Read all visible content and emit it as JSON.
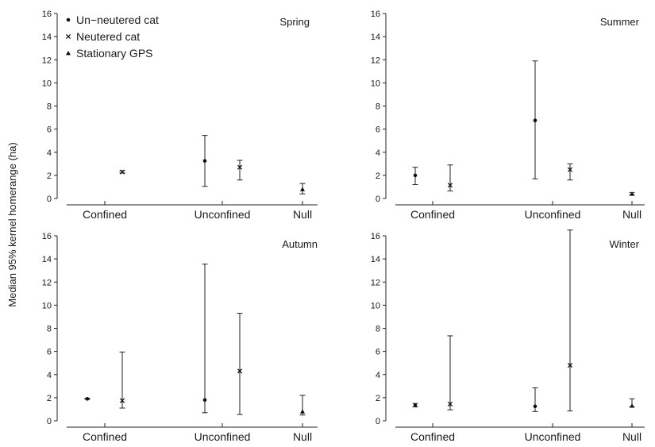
{
  "chart_data": {
    "type": "scatter",
    "ylabel": "Median 95% kernel homerange (ha)",
    "categories": [
      "Confined",
      "Unconfined",
      "Null"
    ],
    "ylim": [
      0,
      16
    ],
    "yticks": [
      "0",
      "2",
      "4",
      "6",
      "8",
      "10",
      "12",
      "14",
      "16"
    ],
    "grid": false,
    "legend_position": "top-left",
    "legend": [
      {
        "name": "Un−neutered cat",
        "marker": "dot"
      },
      {
        "name": "Neutered cat",
        "marker": "x"
      },
      {
        "name": "Stationary GPS",
        "marker": "triangle"
      }
    ],
    "panels": [
      {
        "title": "Spring",
        "points": [
          {
            "category": "Confined",
            "group": "Neutered cat",
            "median": 2.3,
            "low": 2.2,
            "high": 2.4
          },
          {
            "category": "Unconfined",
            "group": "Un−neutered cat",
            "median": 3.25,
            "low": 1.05,
            "high": 5.45
          },
          {
            "category": "Unconfined",
            "group": "Neutered cat",
            "median": 2.7,
            "low": 1.6,
            "high": 3.3
          },
          {
            "category": "Null",
            "group": "Stationary GPS",
            "median": 0.8,
            "low": 0.4,
            "high": 1.3
          }
        ]
      },
      {
        "title": "Summer",
        "points": [
          {
            "category": "Confined",
            "group": "Un−neutered cat",
            "median": 2.0,
            "low": 1.2,
            "high": 2.7
          },
          {
            "category": "Confined",
            "group": "Neutered cat",
            "median": 1.15,
            "low": 0.65,
            "high": 2.9
          },
          {
            "category": "Unconfined",
            "group": "Un−neutered cat",
            "median": 6.75,
            "low": 1.7,
            "high": 11.9
          },
          {
            "category": "Unconfined",
            "group": "Neutered cat",
            "median": 2.5,
            "low": 1.6,
            "high": 3.0
          },
          {
            "category": "Null",
            "group": "Stationary GPS",
            "median": 0.4,
            "low": 0.3,
            "high": 0.5
          }
        ]
      },
      {
        "title": "Autumn",
        "points": [
          {
            "category": "Confined",
            "group": "Un−neutered cat",
            "median": 1.9,
            "low": 1.85,
            "high": 1.95
          },
          {
            "category": "Confined",
            "group": "Neutered cat",
            "median": 1.75,
            "low": 1.1,
            "high": 5.95
          },
          {
            "category": "Unconfined",
            "group": "Un−neutered cat",
            "median": 1.8,
            "low": 0.7,
            "high": 13.55
          },
          {
            "category": "Unconfined",
            "group": "Neutered cat",
            "median": 4.3,
            "low": 0.55,
            "high": 9.3
          },
          {
            "category": "Null",
            "group": "Stationary GPS",
            "median": 0.8,
            "low": 0.5,
            "high": 2.2
          }
        ]
      },
      {
        "title": "Winter",
        "points": [
          {
            "category": "Confined",
            "group": "Un−neutered cat",
            "median": 1.35,
            "low": 1.2,
            "high": 1.5
          },
          {
            "category": "Confined",
            "group": "Neutered cat",
            "median": 1.45,
            "low": 0.95,
            "high": 7.35
          },
          {
            "category": "Unconfined",
            "group": "Un−neutered cat",
            "median": 1.25,
            "low": 0.8,
            "high": 2.85
          },
          {
            "category": "Unconfined",
            "group": "Neutered cat",
            "median": 4.8,
            "low": 0.85,
            "high": 16.5
          },
          {
            "category": "Null",
            "group": "Stationary GPS",
            "median": 1.3,
            "low": 1.2,
            "high": 1.9
          }
        ]
      }
    ]
  }
}
